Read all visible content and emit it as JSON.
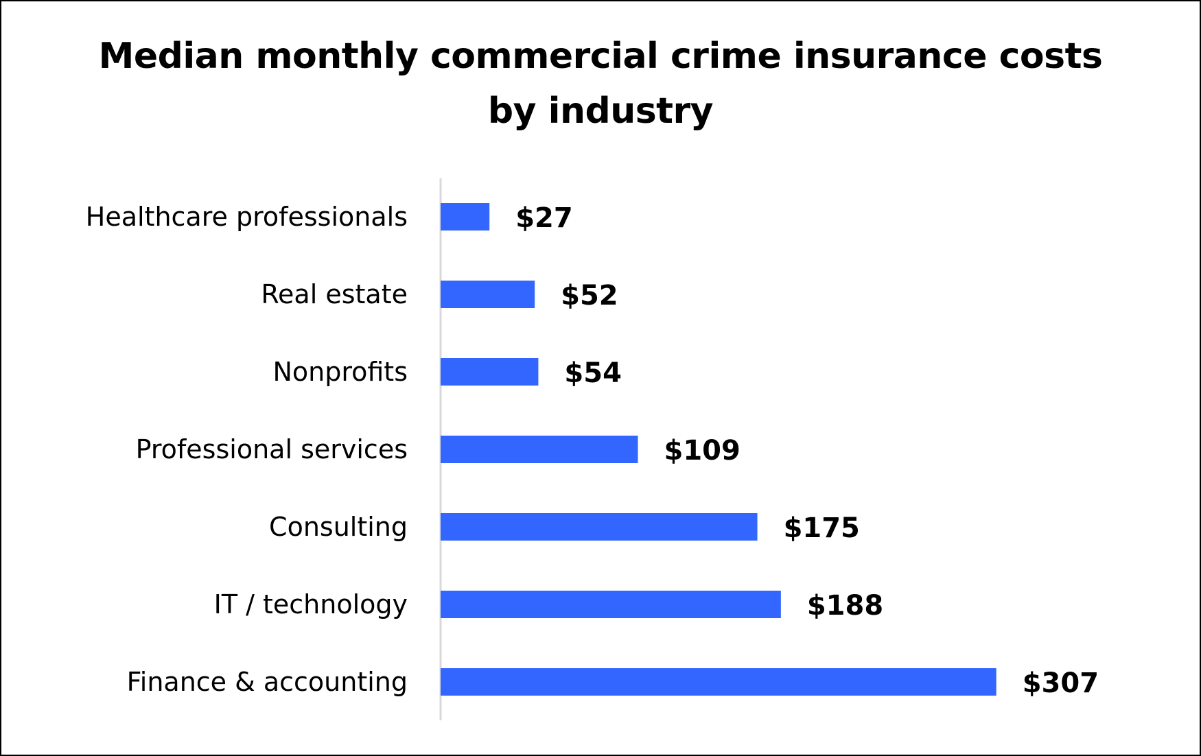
{
  "chart_data": {
    "type": "bar",
    "orientation": "horizontal",
    "title": "Median monthly commercial crime insurance costs\nby industry",
    "categories": [
      "Healthcare professionals",
      "Real estate",
      "Nonprofits",
      "Professional services",
      "Consulting",
      "IT / technology",
      "Finance & accounting"
    ],
    "values": [
      27,
      52,
      54,
      109,
      175,
      188,
      307
    ],
    "value_labels": [
      "$27",
      "$52",
      "$54",
      "$109",
      "$175",
      "$188",
      "$307"
    ],
    "xlabel": "",
    "ylabel": "",
    "grid": false,
    "legend": "none",
    "bar_color": "#3366FF",
    "axis_color": "#D9D9D9"
  }
}
